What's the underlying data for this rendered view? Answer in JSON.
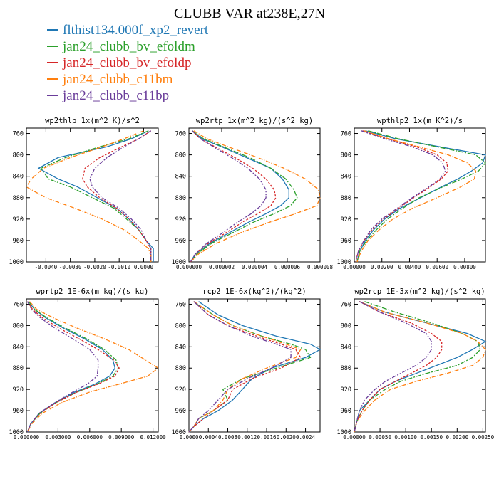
{
  "page": {
    "title": "CLUBB VAR at238E,27N"
  },
  "legend": [
    {
      "name": "flthist134.000f_xp2_revert",
      "color": "#1f77b4",
      "dash": ""
    },
    {
      "name": "jan24_clubb_bv_efoldm",
      "color": "#2ca02c",
      "dash": "7,2,2,2"
    },
    {
      "name": "jan24_clubb_bv_efoldp",
      "color": "#d62728",
      "dash": "3,2"
    },
    {
      "name": "jan24_clubb_c11bm",
      "color": "#ff7f0e",
      "dash": "6,2,1,2"
    },
    {
      "name": "jan24_clubb_c11bp",
      "color": "#6a3d9a",
      "dash": "6,2,2,2,2,2"
    }
  ],
  "chart_data": [
    {
      "type": "line",
      "title": "wp2thlp  1x(m^2 K)/s^2",
      "xlim": [
        -0.0048,
        0.0006
      ],
      "ylim": [
        1000,
        750
      ],
      "xticks": [
        "-0.0040",
        "-0.0030",
        "-0.0020",
        "-0.0010",
        "0.0000"
      ],
      "xtick_values": [
        -0.004,
        -0.003,
        -0.002,
        -0.001,
        0.0
      ],
      "yticks": [
        "760",
        "800",
        "840",
        "880",
        "920",
        "960",
        "1000"
      ],
      "ytick_values": [
        760,
        800,
        840,
        880,
        920,
        960,
        1000
      ],
      "y": [
        755,
        770,
        785,
        805,
        825,
        845,
        860,
        880,
        900,
        920,
        940,
        960,
        975,
        990,
        1000
      ],
      "series": [
        {
          "name": "flthist134.000f_xp2_revert",
          "values": [
            0.0002,
            -0.0005,
            -0.0015,
            -0.0035,
            -0.0043,
            -0.0035,
            -0.0027,
            -0.0019,
            -0.0011,
            -0.0006,
            -0.0002,
            0.0001,
            0.0004,
            0.0004,
            0.0004
          ]
        },
        {
          "name": "jan24_clubb_bv_efoldm",
          "values": [
            0.0002,
            -0.0006,
            -0.0018,
            -0.0032,
            -0.0042,
            -0.0039,
            -0.003,
            -0.0021,
            -0.0012,
            -0.0007,
            -0.0002,
            0.0001,
            0.0003,
            0.0003,
            0.0003
          ]
        },
        {
          "name": "jan24_clubb_bv_efoldp",
          "values": [
            0.0003,
            -0.0002,
            -0.0009,
            -0.0018,
            -0.0024,
            -0.0025,
            -0.0023,
            -0.0018,
            -0.0011,
            -0.0006,
            -0.0002,
            0.0001,
            0.0003,
            0.0003,
            0.0003
          ]
        },
        {
          "name": "jan24_clubb_c11bm",
          "values": [
            0.0,
            -0.0008,
            -0.0017,
            -0.003,
            -0.0041,
            -0.0046,
            -0.0048,
            -0.004,
            -0.0028,
            -0.0017,
            -0.0008,
            -0.0002,
            0.0002,
            0.0003,
            0.0003
          ]
        },
        {
          "name": "jan24_clubb_c11bp",
          "values": [
            0.0003,
            -0.0002,
            -0.0008,
            -0.0015,
            -0.002,
            -0.0022,
            -0.0021,
            -0.0017,
            -0.001,
            -0.0005,
            -0.0001,
            0.0001,
            0.0003,
            0.0003,
            0.0003
          ]
        }
      ]
    },
    {
      "type": "line",
      "title": "wp2rtp  1x(m^2 kg)/(s^2 kg)",
      "xlim": [
        0.0,
        8e-06
      ],
      "ylim": [
        1000,
        750
      ],
      "xticks": [
        "0.000000",
        "0.000002",
        "0.000004",
        "0.000006",
        "0.000008"
      ],
      "xtick_values": [
        0.0,
        2e-06,
        4e-06,
        6e-06,
        8e-06
      ],
      "yticks": [
        "760",
        "800",
        "840",
        "880",
        "920",
        "960",
        "1000"
      ],
      "ytick_values": [
        760,
        800,
        840,
        880,
        920,
        960,
        1000
      ],
      "y": [
        755,
        770,
        785,
        805,
        825,
        845,
        865,
        880,
        895,
        910,
        925,
        945,
        965,
        985,
        1000
      ],
      "series": [
        {
          "name": "flthist134.000f_xp2_revert",
          "values": [
            2e-07,
            8e-07,
            2e-06,
            3.5e-06,
            5e-06,
            5.7e-06,
            6.1e-06,
            6.1e-06,
            5.6e-06,
            4.7e-06,
            3.7e-06,
            2.5e-06,
            1.3e-06,
            4e-07,
            1e-07
          ]
        },
        {
          "name": "jan24_clubb_bv_efoldm",
          "values": [
            2e-07,
            9e-07,
            2.1e-06,
            3.7e-06,
            5e-06,
            5.9e-06,
            6.4e-06,
            6.6e-06,
            6.2e-06,
            5.2e-06,
            4e-06,
            2.7e-06,
            1.4e-06,
            5e-07,
            1e-07
          ]
        },
        {
          "name": "jan24_clubb_bv_efoldp",
          "values": [
            2e-07,
            7e-07,
            1.6e-06,
            2.8e-06,
            3.9e-06,
            4.7e-06,
            5.2e-06,
            5.3e-06,
            5e-06,
            4.2e-06,
            3.3e-06,
            2.3e-06,
            1.2e-06,
            4e-07,
            1e-07
          ]
        },
        {
          "name": "jan24_clubb_c11bm",
          "values": [
            3e-07,
            1.1e-06,
            2.4e-06,
            4.2e-06,
            5.8e-06,
            7.1e-06,
            7.9e-06,
            8.1e-06,
            7.8e-06,
            6.5e-06,
            5e-06,
            3.2e-06,
            1.7e-06,
            6e-07,
            1e-07
          ]
        },
        {
          "name": "jan24_clubb_c11bp",
          "values": [
            2e-07,
            7e-07,
            1.5e-06,
            2.6e-06,
            3.6e-06,
            4.3e-06,
            4.7e-06,
            4.7e-06,
            4.4e-06,
            3.8e-06,
            3e-06,
            2.1e-06,
            1.1e-06,
            4e-07,
            1e-07
          ]
        }
      ]
    },
    {
      "type": "line",
      "title": "wpthlp2  1x(m K^2)/s",
      "xlim": [
        0.0,
        0.0095
      ],
      "ylim": [
        1000,
        750
      ],
      "xticks": [
        "0.00000",
        "0.00200",
        "0.00400",
        "0.00600",
        "0.00800"
      ],
      "xtick_values": [
        0.0,
        0.002,
        0.004,
        0.006,
        0.008
      ],
      "yticks": [
        "760",
        "800",
        "840",
        "880",
        "920",
        "960",
        "1000"
      ],
      "ytick_values": [
        760,
        800,
        840,
        880,
        920,
        960,
        1000
      ],
      "y": [
        755,
        770,
        785,
        800,
        815,
        830,
        845,
        860,
        880,
        900,
        920,
        940,
        960,
        980,
        1000
      ],
      "series": [
        {
          "name": "flthist134.000f_xp2_revert",
          "values": [
            0.0008,
            0.003,
            0.0062,
            0.0095,
            0.0093,
            0.0085,
            0.0075,
            0.0063,
            0.0048,
            0.0033,
            0.0022,
            0.0014,
            0.0008,
            0.0004,
            0.0002
          ]
        },
        {
          "name": "jan24_clubb_bv_efoldm",
          "values": [
            0.001,
            0.0032,
            0.006,
            0.0088,
            0.0095,
            0.009,
            0.0078,
            0.0064,
            0.0047,
            0.0035,
            0.0024,
            0.0016,
            0.0009,
            0.0004,
            0.0002
          ]
        },
        {
          "name": "jan24_clubb_bv_efoldp",
          "values": [
            0.0006,
            0.0024,
            0.0045,
            0.006,
            0.0067,
            0.0068,
            0.0063,
            0.0055,
            0.0043,
            0.0032,
            0.0021,
            0.0013,
            0.0007,
            0.0003,
            0.0001
          ]
        },
        {
          "name": "jan24_clubb_c11bm",
          "values": [
            0.0007,
            0.0025,
            0.0047,
            0.0068,
            0.0082,
            0.0088,
            0.0087,
            0.0077,
            0.006,
            0.0042,
            0.0028,
            0.0018,
            0.001,
            0.0005,
            0.0002
          ]
        },
        {
          "name": "jan24_clubb_c11bp",
          "values": [
            0.0005,
            0.0022,
            0.0042,
            0.0057,
            0.0064,
            0.0066,
            0.0062,
            0.0054,
            0.0042,
            0.0031,
            0.002,
            0.0012,
            0.0007,
            0.0003,
            0.0001
          ]
        }
      ]
    },
    {
      "type": "line",
      "title": "wprtp2  1E-6x(m kg)/(s kg)",
      "xlim": [
        0.0,
        0.0125
      ],
      "ylim": [
        1000,
        750
      ],
      "xticks": [
        "0.000000",
        "0.003000",
        "0.006000",
        "0.009000",
        "0.012000"
      ],
      "xtick_values": [
        0.0,
        0.003,
        0.006,
        0.009,
        0.012
      ],
      "yticks": [
        "760",
        "800",
        "840",
        "880",
        "920",
        "960",
        "1000"
      ],
      "ytick_values": [
        760,
        800,
        840,
        880,
        920,
        960,
        1000
      ],
      "y": [
        755,
        770,
        785,
        805,
        825,
        845,
        865,
        880,
        895,
        910,
        925,
        945,
        965,
        985,
        1000
      ],
      "series": [
        {
          "name": "flthist134.000f_xp2_revert",
          "values": [
            0.0002,
            0.0008,
            0.0018,
            0.0035,
            0.0055,
            0.0072,
            0.0082,
            0.0084,
            0.0079,
            0.0065,
            0.0046,
            0.0027,
            0.0012,
            0.0004,
            0.0001
          ]
        },
        {
          "name": "jan24_clubb_bv_efoldm",
          "values": [
            0.0002,
            0.0008,
            0.0019,
            0.0037,
            0.0057,
            0.0074,
            0.0085,
            0.0087,
            0.0082,
            0.0067,
            0.0048,
            0.0028,
            0.0013,
            0.0004,
            0.0001
          ]
        },
        {
          "name": "jan24_clubb_bv_efoldp",
          "values": [
            0.0001,
            0.0006,
            0.0015,
            0.0031,
            0.005,
            0.0068,
            0.0083,
            0.0088,
            0.0084,
            0.0068,
            0.0048,
            0.0028,
            0.0013,
            0.0004,
            0.0001
          ]
        },
        {
          "name": "jan24_clubb_c11bm",
          "values": [
            0.0003,
            0.001,
            0.0025,
            0.0048,
            0.0074,
            0.0097,
            0.0113,
            0.0125,
            0.0115,
            0.0088,
            0.006,
            0.0033,
            0.0015,
            0.0005,
            0.0001
          ]
        },
        {
          "name": "jan24_clubb_c11bp",
          "values": [
            0.0001,
            0.0005,
            0.0013,
            0.0027,
            0.0044,
            0.006,
            0.0068,
            0.0068,
            0.0067,
            0.0058,
            0.0044,
            0.0027,
            0.0012,
            0.0004,
            0.0001
          ]
        }
      ]
    },
    {
      "type": "line",
      "title": "rcp2  1E-6x(kg^2)/(kg^2)",
      "xlim": [
        0.0,
        0.0027
      ],
      "ylim": [
        1000,
        750
      ],
      "xticks": [
        "0.0000",
        "0.0004",
        "0.0008",
        "0.0012",
        "0.0016",
        "0.0020",
        "0.0024"
      ],
      "xtick_values": [
        0.0,
        0.0004,
        0.0008,
        0.0012,
        0.0016,
        0.002,
        0.0024
      ],
      "yticks": [
        "760",
        "800",
        "840",
        "880",
        "920",
        "960",
        "1000"
      ],
      "ytick_values": [
        760,
        800,
        840,
        880,
        920,
        960,
        1000
      ],
      "y": [
        755,
        780,
        800,
        820,
        835,
        845,
        860,
        880,
        900,
        920,
        940,
        960,
        975,
        990,
        1000
      ],
      "series": [
        {
          "name": "flthist134.000f_xp2_revert",
          "values": [
            0.0002,
            0.0006,
            0.0011,
            0.0018,
            0.0025,
            0.0027,
            0.0024,
            0.0017,
            0.0013,
            0.0011,
            0.0009,
            0.0006,
            0.0003,
            0.0001,
            0.0
          ]
        },
        {
          "name": "jan24_clubb_bv_efoldm",
          "values": [
            0.0001,
            0.0005,
            0.0009,
            0.0015,
            0.0021,
            0.0024,
            0.0025,
            0.0018,
            0.0011,
            0.0007,
            0.0008,
            0.0005,
            0.0002,
            0.0001,
            0.0
          ]
        },
        {
          "name": "jan24_clubb_bv_efoldp",
          "values": [
            0.0001,
            0.0004,
            0.0008,
            0.0014,
            0.0019,
            0.0022,
            0.0023,
            0.0019,
            0.0013,
            0.0009,
            0.0008,
            0.0005,
            0.0003,
            0.0001,
            0.0
          ]
        },
        {
          "name": "jan24_clubb_c11bm",
          "values": [
            0.0001,
            0.0005,
            0.0009,
            0.0015,
            0.002,
            0.0023,
            0.0022,
            0.0016,
            0.0011,
            0.0008,
            0.0007,
            0.0005,
            0.0002,
            0.0001,
            0.0
          ]
        },
        {
          "name": "jan24_clubb_c11bp",
          "values": [
            0.0001,
            0.0004,
            0.0008,
            0.0013,
            0.0018,
            0.0021,
            0.0021,
            0.0017,
            0.0012,
            0.0008,
            0.0006,
            0.0004,
            0.0002,
            0.0001,
            0.0
          ]
        }
      ]
    },
    {
      "type": "line",
      "title": "wp2rcp  1E-3x(m^2 kg)/(s^2 kg)",
      "xlim": [
        0.0,
        0.00255
      ],
      "ylim": [
        1000,
        750
      ],
      "xticks": [
        "0.00000",
        "0.00050",
        "0.00100",
        "0.00150",
        "0.00200",
        "0.00250"
      ],
      "xtick_values": [
        0.0,
        0.0005,
        0.001,
        0.0015,
        0.002,
        0.0025
      ],
      "yticks": [
        "760",
        "800",
        "840",
        "880",
        "920",
        "960",
        "1000"
      ],
      "ytick_values": [
        760,
        800,
        840,
        880,
        920,
        960,
        1000
      ],
      "y": [
        755,
        775,
        795,
        815,
        830,
        845,
        860,
        875,
        890,
        905,
        920,
        940,
        960,
        980,
        1000
      ],
      "series": [
        {
          "name": "flthist134.000f_xp2_revert",
          "values": [
            0.0001,
            0.0006,
            0.0014,
            0.0022,
            0.00255,
            0.0023,
            0.002,
            0.0016,
            0.0012,
            0.0008,
            0.0005,
            0.0003,
            0.0001,
            5e-05,
            0.0
          ]
        },
        {
          "name": "jan24_clubb_bv_efoldm",
          "values": [
            0.0002,
            0.0008,
            0.0015,
            0.0021,
            0.0024,
            0.00245,
            0.0023,
            0.002,
            0.0014,
            0.0009,
            0.0006,
            0.0003,
            0.00015,
            5e-05,
            0.0
          ]
        },
        {
          "name": "jan24_clubb_bv_efoldp",
          "values": [
            0.0001,
            0.0005,
            0.0011,
            0.0015,
            0.0017,
            0.0017,
            0.0016,
            0.0014,
            0.0011,
            0.0008,
            0.0005,
            0.0003,
            0.00015,
            5e-05,
            0.0
          ]
        },
        {
          "name": "jan24_clubb_c11bm",
          "values": [
            0.0001,
            0.0006,
            0.0014,
            0.0021,
            0.0024,
            0.00255,
            0.0025,
            0.0023,
            0.0018,
            0.0012,
            0.0007,
            0.0004,
            0.0002,
            5e-05,
            0.0
          ]
        },
        {
          "name": "jan24_clubb_c11bp",
          "values": [
            0.0001,
            0.0005,
            0.001,
            0.0014,
            0.0015,
            0.0015,
            0.0014,
            0.0012,
            0.0009,
            0.0006,
            0.0004,
            0.0002,
            0.0001,
            5e-05,
            0.0
          ]
        }
      ]
    }
  ]
}
